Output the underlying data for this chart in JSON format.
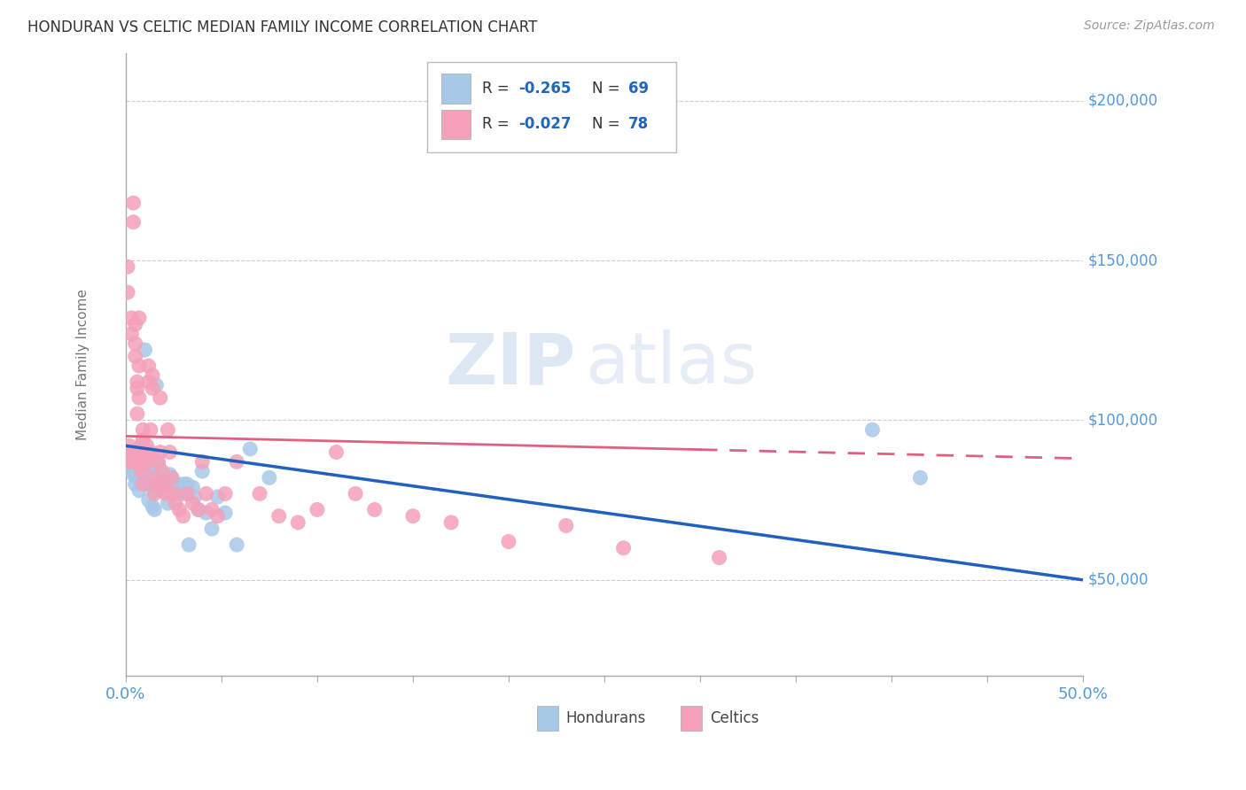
{
  "title": "HONDURAN VS CELTIC MEDIAN FAMILY INCOME CORRELATION CHART",
  "source": "Source: ZipAtlas.com",
  "ylabel": "Median Family Income",
  "y_ticks": [
    50000,
    100000,
    150000,
    200000
  ],
  "y_tick_labels": [
    "$50,000",
    "$100,000",
    "$150,000",
    "$200,000"
  ],
  "x_min": 0.0,
  "x_max": 0.5,
  "y_min": 20000,
  "y_max": 215000,
  "honduran_color": "#A8C8E8",
  "celtic_color": "#F4A0B8",
  "honduran_line_color": "#2060C0",
  "celtic_line_color": "#E06080",
  "legend_r_honduran": "-0.265",
  "legend_n_honduran": "69",
  "legend_r_celtic": "-0.027",
  "legend_n_celtic": "78",
  "legend_label_honduran": "Hondurans",
  "legend_label_celtic": "Celtics",
  "watermark_zip": "ZIP",
  "watermark_atlas": "atlas",
  "honduran_x": [
    0.001,
    0.002,
    0.003,
    0.004,
    0.004,
    0.005,
    0.005,
    0.005,
    0.006,
    0.006,
    0.006,
    0.007,
    0.007,
    0.007,
    0.007,
    0.008,
    0.008,
    0.008,
    0.009,
    0.009,
    0.01,
    0.01,
    0.01,
    0.011,
    0.011,
    0.011,
    0.012,
    0.012,
    0.013,
    0.013,
    0.014,
    0.014,
    0.015,
    0.015,
    0.016,
    0.016,
    0.017,
    0.017,
    0.018,
    0.018,
    0.019,
    0.02,
    0.021,
    0.022,
    0.022,
    0.023,
    0.024,
    0.025,
    0.026,
    0.027,
    0.028,
    0.029,
    0.03,
    0.031,
    0.032,
    0.033,
    0.035,
    0.036,
    0.038,
    0.04,
    0.042,
    0.045,
    0.048,
    0.052,
    0.058,
    0.065,
    0.075,
    0.39,
    0.415
  ],
  "honduran_y": [
    88000,
    90000,
    85000,
    87000,
    83000,
    86000,
    83000,
    80000,
    89000,
    85000,
    82000,
    88000,
    84000,
    82000,
    78000,
    87000,
    84000,
    81000,
    86000,
    83000,
    122000,
    88000,
    83000,
    88000,
    85000,
    80000,
    82000,
    75000,
    84000,
    80000,
    73000,
    82000,
    72000,
    78000,
    111000,
    80000,
    86000,
    81000,
    84000,
    78000,
    78000,
    82000,
    80000,
    80000,
    74000,
    83000,
    82000,
    81000,
    80000,
    79000,
    77000,
    78000,
    80000,
    77000,
    80000,
    61000,
    79000,
    76000,
    72000,
    84000,
    71000,
    66000,
    76000,
    71000,
    61000,
    91000,
    82000,
    97000,
    82000
  ],
  "celtic_x": [
    0.001,
    0.001,
    0.002,
    0.002,
    0.003,
    0.003,
    0.003,
    0.004,
    0.004,
    0.004,
    0.005,
    0.005,
    0.005,
    0.005,
    0.006,
    0.006,
    0.006,
    0.006,
    0.007,
    0.007,
    0.007,
    0.007,
    0.008,
    0.008,
    0.008,
    0.009,
    0.009,
    0.009,
    0.01,
    0.01,
    0.01,
    0.011,
    0.011,
    0.012,
    0.012,
    0.012,
    0.013,
    0.013,
    0.014,
    0.014,
    0.015,
    0.015,
    0.016,
    0.017,
    0.018,
    0.018,
    0.019,
    0.02,
    0.021,
    0.022,
    0.023,
    0.024,
    0.025,
    0.026,
    0.028,
    0.03,
    0.032,
    0.035,
    0.038,
    0.04,
    0.042,
    0.045,
    0.048,
    0.052,
    0.058,
    0.07,
    0.08,
    0.09,
    0.1,
    0.11,
    0.12,
    0.13,
    0.15,
    0.17,
    0.2,
    0.23,
    0.26,
    0.31
  ],
  "celtic_y": [
    148000,
    140000,
    92000,
    87000,
    132000,
    127000,
    90000,
    168000,
    162000,
    87000,
    130000,
    124000,
    120000,
    87000,
    112000,
    110000,
    102000,
    88000,
    132000,
    117000,
    107000,
    90000,
    92000,
    87000,
    84000,
    97000,
    94000,
    80000,
    90000,
    88000,
    86000,
    92000,
    90000,
    117000,
    112000,
    88000,
    97000,
    90000,
    114000,
    110000,
    82000,
    77000,
    80000,
    87000,
    90000,
    107000,
    84000,
    80000,
    77000,
    97000,
    90000,
    82000,
    77000,
    74000,
    72000,
    70000,
    77000,
    74000,
    72000,
    87000,
    77000,
    72000,
    70000,
    77000,
    87000,
    77000,
    70000,
    68000,
    72000,
    90000,
    77000,
    72000,
    70000,
    68000,
    62000,
    67000,
    60000,
    57000
  ]
}
